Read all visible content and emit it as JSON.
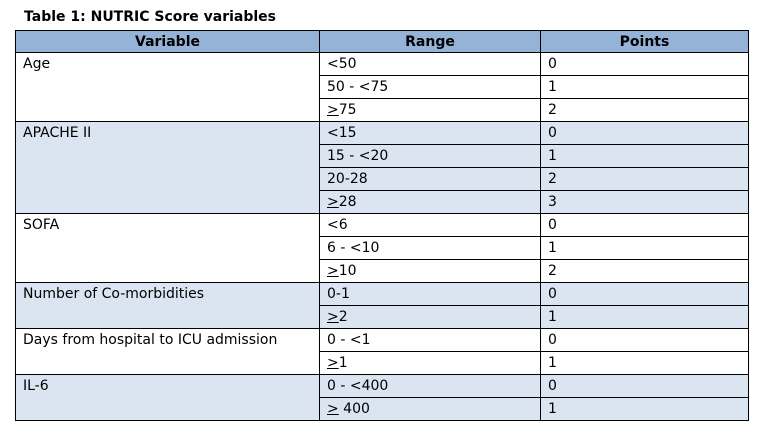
{
  "caption": "Table 1: NUTRIC Score variables",
  "headers": {
    "variable": "Variable",
    "range": "Range",
    "points": "Points"
  },
  "groups": [
    {
      "variable": "Age",
      "shaded": false,
      "rows": [
        {
          "ge": "",
          "range": "<50",
          "points": "0"
        },
        {
          "ge": "",
          "range": "50 - <75",
          "points": "1"
        },
        {
          "ge": ">",
          "range": "75",
          "points": "2"
        }
      ]
    },
    {
      "variable": "APACHE II",
      "shaded": true,
      "rows": [
        {
          "ge": "",
          "range": "<15",
          "points": "0"
        },
        {
          "ge": "",
          "range": "15 - <20",
          "points": "1"
        },
        {
          "ge": "",
          "range": "20-28",
          "points": "2"
        },
        {
          "ge": ">",
          "range": "28",
          "points": "3"
        }
      ]
    },
    {
      "variable": "SOFA",
      "shaded": false,
      "rows": [
        {
          "ge": "",
          "range": "<6",
          "points": "0"
        },
        {
          "ge": "",
          "range": "6 - <10",
          "points": "1"
        },
        {
          "ge": ">",
          "range": "10",
          "points": "2"
        }
      ]
    },
    {
      "variable": "Number of Co-morbidities",
      "shaded": true,
      "rows": [
        {
          "ge": "",
          "range": "0-1",
          "points": "0"
        },
        {
          "ge": ">",
          "range": "2",
          "points": "1"
        }
      ]
    },
    {
      "variable": "Days from hospital to ICU admission",
      "shaded": false,
      "rows": [
        {
          "ge": "",
          "range": "0 - <1",
          "points": "0"
        },
        {
          "ge": ">",
          "range": "1",
          "points": "1"
        }
      ]
    },
    {
      "variable": "IL-6",
      "shaded": true,
      "rows": [
        {
          "ge": "",
          "range": "0 - <400",
          "points": "0"
        },
        {
          "ge": ">",
          "range": " 400",
          "points": "1"
        }
      ]
    }
  ]
}
